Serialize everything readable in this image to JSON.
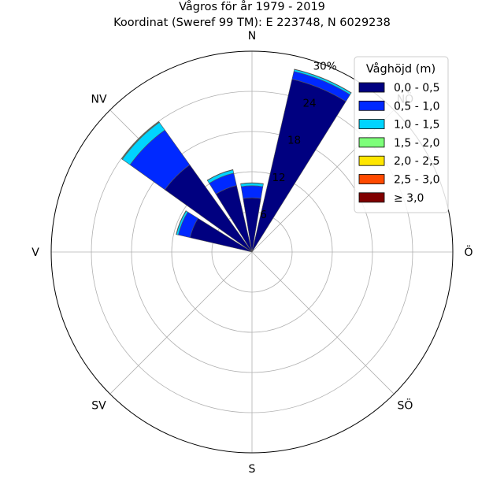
{
  "chart_data": {
    "type": "windrose",
    "title": "Vågros för år 1979 - 2019",
    "subtitle": "Koordinat (Sweref 99 TM): E 223748, N 6029238",
    "direction_labels": [
      "N",
      "NÖ",
      "Ö",
      "SÖ",
      "S",
      "SV",
      "V",
      "NV"
    ],
    "directions": [
      "N",
      "NNÖ",
      "NÖ",
      "ÖNÖ",
      "Ö",
      "ÖSÖ",
      "SÖ",
      "SSÖ",
      "S",
      "SSV",
      "SV",
      "VSV",
      "V",
      "VNV",
      "NV",
      "NNV"
    ],
    "radial_ticks": [
      "6",
      "12",
      "18",
      "24",
      "30%"
    ],
    "radial_max": 30,
    "legend_title": "Våghöjd (m)",
    "legend_position": "top-right",
    "grid": true,
    "series": [
      {
        "name": "0,0 - 0,5",
        "color": "#000080",
        "values": [
          8.1,
          26.5,
          0,
          0,
          0,
          0,
          0,
          0,
          0,
          0,
          0,
          0,
          0,
          9.5,
          16.0,
          10.2
        ]
      },
      {
        "name": "0,5 - 1,0",
        "color": "#0029ff",
        "values": [
          1.8,
          1.2,
          0,
          0,
          0,
          0,
          0,
          0,
          0,
          0,
          0,
          0,
          0,
          1.8,
          6.4,
          1.9
        ]
      },
      {
        "name": "1,0 - 1,5",
        "color": "#00d4ff",
        "values": [
          0.4,
          0.3,
          0,
          0,
          0,
          0,
          0,
          0,
          0,
          0,
          0,
          0,
          0,
          0.3,
          1.4,
          0.5
        ]
      },
      {
        "name": "1,5 - 2,0",
        "color": "#7dff7a",
        "values": [
          0.05,
          0.05,
          0,
          0,
          0,
          0,
          0,
          0,
          0,
          0,
          0,
          0,
          0,
          0.05,
          0.1,
          0.05
        ]
      },
      {
        "name": "2,0 - 2,5",
        "color": "#ffe600",
        "values": [
          0,
          0,
          0,
          0,
          0,
          0,
          0,
          0,
          0,
          0,
          0,
          0,
          0,
          0,
          0.05,
          0
        ]
      },
      {
        "name": "2,5 - 3,0",
        "color": "#ff4a00",
        "values": [
          0,
          0,
          0,
          0,
          0,
          0,
          0,
          0,
          0,
          0,
          0,
          0,
          0,
          0,
          0,
          0
        ]
      },
      {
        "name": "≥ 3,0",
        "color": "#800000",
        "values": [
          0,
          0,
          0,
          0,
          0,
          0,
          0,
          0,
          0,
          0,
          0,
          0,
          0,
          0,
          0,
          0
        ]
      }
    ]
  }
}
